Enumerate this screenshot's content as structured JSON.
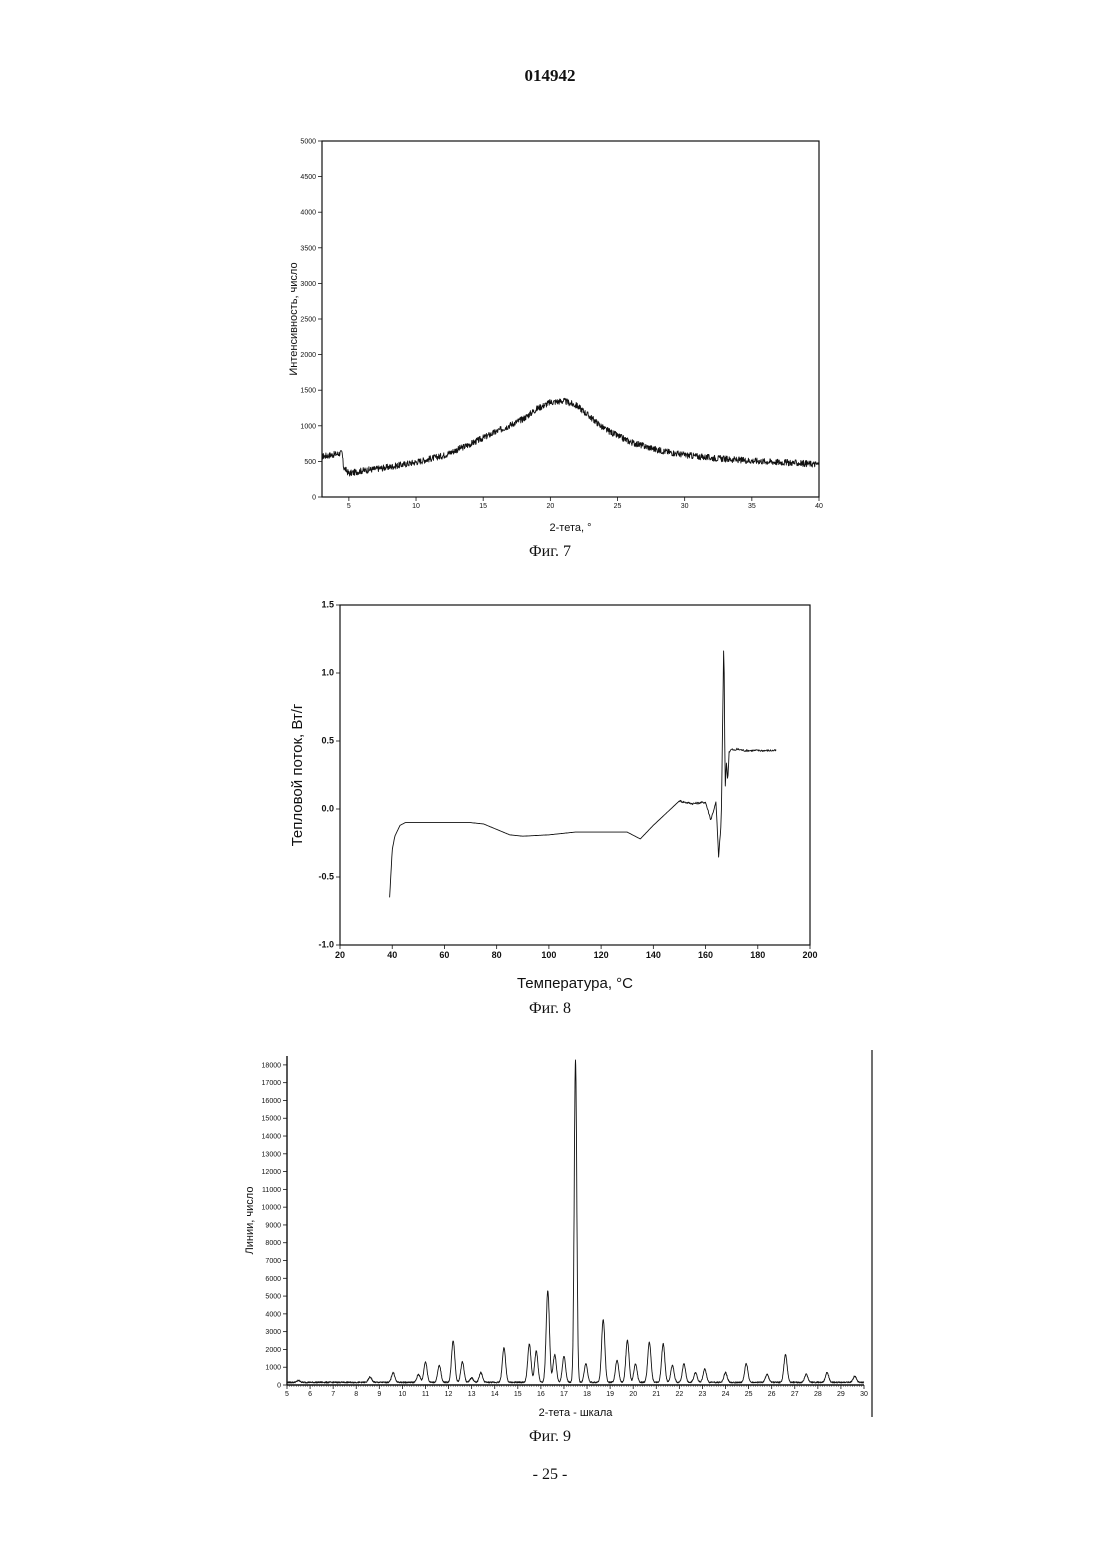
{
  "header": {
    "doc_number": "014942"
  },
  "footer": {
    "page_number": "- 25 -"
  },
  "figures": [
    {
      "caption": "Фиг. 7",
      "xlabel": "2-тета, °",
      "ylabel": "Интенсивность, число"
    },
    {
      "caption": "Фиг. 8",
      "xlabel": "Температура, °C",
      "ylabel": "Тепловой поток, Вт/г"
    },
    {
      "caption": "Фиг. 9",
      "xlabel": "2-тета - шкала",
      "ylabel": "Линии, число"
    }
  ],
  "chart_data": [
    {
      "type": "line",
      "title": "",
      "xlabel": "2-тета, °",
      "ylabel": "Интенсивность, число",
      "xlim": [
        3,
        40
      ],
      "ylim": [
        0,
        5000
      ],
      "xticks": [
        5,
        10,
        15,
        20,
        25,
        30,
        35,
        40
      ],
      "yticks": [
        0,
        500,
        1000,
        1500,
        2000,
        2500,
        3000,
        3500,
        4000,
        4500,
        5000
      ],
      "ytick_labels": [
        "0",
        "500",
        "1000",
        "1500",
        "2000",
        "2500",
        "3000",
        "3500",
        "4000",
        "4500",
        "5000"
      ],
      "series": [
        {
          "x": [
            3,
            4,
            4.5,
            4.6,
            5,
            6,
            8,
            10,
            12,
            14,
            16,
            18,
            19,
            20,
            21,
            22,
            23,
            24,
            25,
            26,
            28,
            30,
            32,
            34,
            36,
            38,
            40
          ],
          "values": [
            570,
            600,
            620,
            420,
            330,
            370,
            420,
            490,
            580,
            740,
            920,
            1100,
            1240,
            1330,
            1350,
            1280,
            1120,
            960,
            860,
            770,
            660,
            590,
            550,
            520,
            500,
            480,
            460
          ]
        }
      ]
    },
    {
      "type": "line",
      "title": "",
      "xlabel": "Температура, °C",
      "ylabel": "Тепловой поток, Вт/г",
      "xlim": [
        20,
        200
      ],
      "ylim": [
        -1.0,
        1.5
      ],
      "xticks": [
        20,
        40,
        60,
        80,
        100,
        120,
        140,
        160,
        180,
        200
      ],
      "yticks": [
        -1.0,
        -0.5,
        0.0,
        0.5,
        1.0,
        1.5
      ],
      "ytick_labels": [
        "-1.0",
        "-0.5",
        "0.0",
        "0.5",
        "1.0",
        "1.5"
      ],
      "series": [
        {
          "x": [
            39,
            40,
            41,
            43,
            45,
            50,
            60,
            70,
            75,
            80,
            85,
            90,
            100,
            110,
            120,
            130,
            133,
            135,
            140,
            145,
            150,
            152,
            155,
            160,
            162,
            164,
            165,
            166,
            167,
            167.5,
            168,
            168.5,
            169,
            170,
            171,
            172,
            175,
            180,
            187
          ],
          "values": [
            -0.65,
            -0.3,
            -0.2,
            -0.12,
            -0.1,
            -0.1,
            -0.1,
            -0.1,
            -0.11,
            -0.15,
            -0.19,
            -0.2,
            -0.19,
            -0.17,
            -0.17,
            -0.17,
            -0.2,
            -0.22,
            -0.12,
            -0.03,
            0.06,
            0.05,
            0.04,
            0.05,
            -0.08,
            0.05,
            -0.35,
            -0.1,
            1.28,
            0.15,
            0.35,
            0.2,
            0.42,
            0.44,
            0.43,
            0.44,
            0.43,
            0.43,
            0.43
          ]
        }
      ]
    },
    {
      "type": "line",
      "title": "",
      "xlabel": "2-тета - шкала",
      "ylabel": "Линии, число",
      "xlim": [
        5,
        30
      ],
      "ylim": [
        0,
        18500
      ],
      "xticks": [
        5,
        6,
        7,
        8,
        9,
        10,
        11,
        12,
        13,
        14,
        15,
        16,
        17,
        18,
        19,
        20,
        21,
        22,
        23,
        24,
        25,
        26,
        27,
        28,
        29,
        30
      ],
      "yticks": [
        0,
        1000,
        2000,
        3000,
        4000,
        5000,
        6000,
        7000,
        8000,
        9000,
        10000,
        11000,
        12000,
        13000,
        14000,
        15000,
        16000,
        17000,
        18000
      ],
      "ytick_labels": [
        "0",
        "1000",
        "2000",
        "3000",
        "4000",
        "5000",
        "6000",
        "7000",
        "8000",
        "9000",
        "10000",
        "11000",
        "12000",
        "13000",
        "14000",
        "15000",
        "16000",
        "17000",
        "18000"
      ],
      "baseline": 150,
      "peaks": [
        {
          "x": 5.5,
          "value": 250
        },
        {
          "x": 8.6,
          "value": 450
        },
        {
          "x": 9.6,
          "value": 700
        },
        {
          "x": 10.7,
          "value": 600
        },
        {
          "x": 11.0,
          "value": 1300
        },
        {
          "x": 11.6,
          "value": 1100
        },
        {
          "x": 12.2,
          "value": 2500
        },
        {
          "x": 12.6,
          "value": 1300
        },
        {
          "x": 13.0,
          "value": 400
        },
        {
          "x": 13.4,
          "value": 700
        },
        {
          "x": 14.4,
          "value": 2100
        },
        {
          "x": 15.5,
          "value": 2300
        },
        {
          "x": 15.8,
          "value": 1900
        },
        {
          "x": 16.3,
          "value": 5300
        },
        {
          "x": 16.6,
          "value": 1700
        },
        {
          "x": 17.0,
          "value": 1600
        },
        {
          "x": 17.5,
          "value": 18300
        },
        {
          "x": 17.95,
          "value": 1200
        },
        {
          "x": 18.7,
          "value": 3700
        },
        {
          "x": 19.3,
          "value": 1400
        },
        {
          "x": 19.75,
          "value": 2500
        },
        {
          "x": 20.1,
          "value": 1200
        },
        {
          "x": 20.7,
          "value": 2400
        },
        {
          "x": 21.3,
          "value": 2300
        },
        {
          "x": 21.7,
          "value": 1100
        },
        {
          "x": 22.2,
          "value": 1200
        },
        {
          "x": 22.7,
          "value": 700
        },
        {
          "x": 23.1,
          "value": 900
        },
        {
          "x": 24.0,
          "value": 700
        },
        {
          "x": 24.9,
          "value": 1200
        },
        {
          "x": 25.8,
          "value": 600
        },
        {
          "x": 26.6,
          "value": 1700
        },
        {
          "x": 27.5,
          "value": 600
        },
        {
          "x": 28.4,
          "value": 700
        },
        {
          "x": 29.6,
          "value": 500
        }
      ]
    }
  ]
}
